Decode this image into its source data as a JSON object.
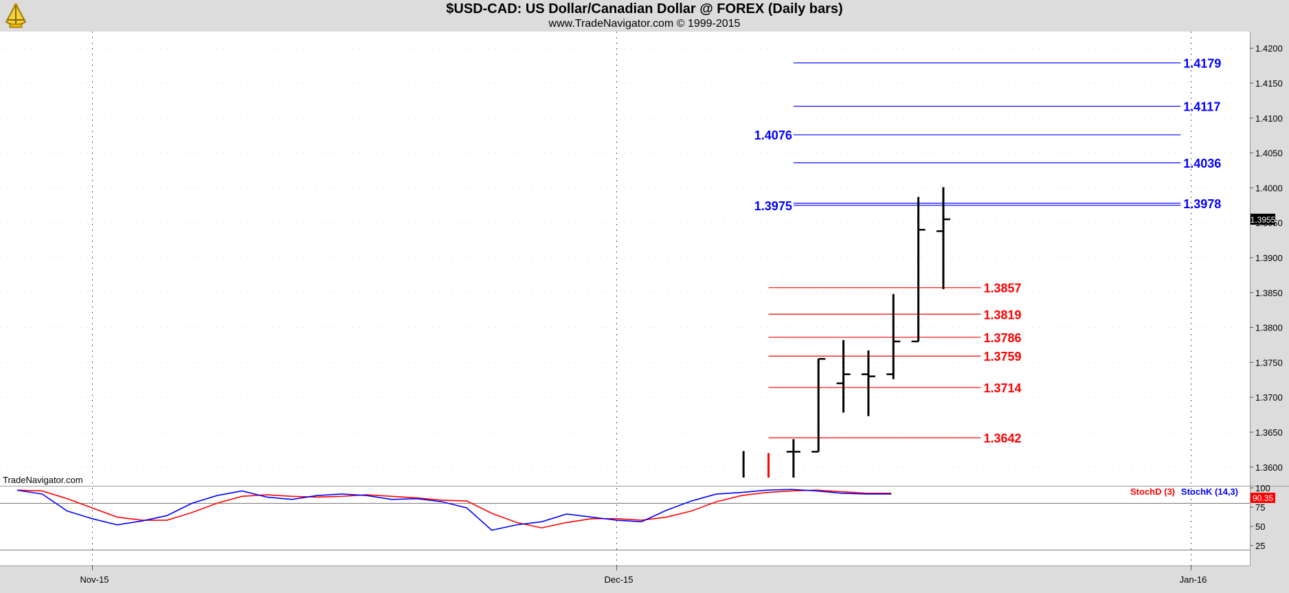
{
  "header": {
    "title": "$USD-CAD:  US Dollar/Canadian Dollar @ FOREX  (Daily bars)",
    "subtitle": "www.TradeNavigator.com © 1999-2015",
    "watermark": "TradeNavigator.com"
  },
  "colors": {
    "background": "#ffffff",
    "chrome": "#dcdcdc",
    "bar": "#000000",
    "blue_level": "#0000ff",
    "red_level": "#ff0000",
    "stoch_k": "#0000ff",
    "stoch_d": "#ff0000",
    "price_badge": "#000000",
    "stoch_badge": "#ff0000"
  },
  "chart_data": [
    {
      "type": "ohlc",
      "x_tick_labels": [
        {
          "label": "Nov-15",
          "index": 3
        },
        {
          "label": "Dec-15",
          "index": 24
        },
        {
          "label": "Jan-16",
          "index": 47
        }
      ],
      "ylim": [
        1.3585,
        1.4215
      ],
      "y_ticks": [
        "1.3600",
        "1.3650",
        "1.3700",
        "1.3750",
        "1.3800",
        "1.3850",
        "1.3900",
        "1.3950",
        "1.4000",
        "1.4050",
        "1.4100",
        "1.4150",
        "1.4200"
      ],
      "last_price": "1.3955",
      "bars": [
        {
          "index": 29,
          "high": 1.3623,
          "low": 1.3585,
          "color": "#000000"
        },
        {
          "index": 30,
          "high": 1.362,
          "low": 1.3585,
          "color": "#ff0000"
        },
        {
          "index": 31,
          "open": 1.3622,
          "high": 1.364,
          "low": 1.3585,
          "close": 1.3622
        },
        {
          "index": 32,
          "open": 1.3622,
          "high": 1.3755,
          "low": 1.3622,
          "close": 1.3755
        },
        {
          "index": 33,
          "open": 1.372,
          "high": 1.3782,
          "low": 1.3678,
          "close": 1.3733
        },
        {
          "index": 34,
          "open": 1.3733,
          "high": 1.3767,
          "low": 1.3673,
          "close": 1.373
        },
        {
          "index": 35,
          "open": 1.3733,
          "high": 1.3848,
          "low": 1.3726,
          "close": 1.378
        },
        {
          "index": 36,
          "open": 1.378,
          "high": 1.3987,
          "low": 1.378,
          "close": 1.394
        },
        {
          "index": 37,
          "open": 1.3938,
          "high": 1.4001,
          "low": 1.3855,
          "close": 1.3955
        }
      ],
      "levels": [
        {
          "value": 1.4179,
          "label": "1.4179",
          "color": "blue",
          "from_index": 31,
          "to_index": 46.5,
          "label_side": "right"
        },
        {
          "value": 1.4117,
          "label": "1.4117",
          "color": "blue",
          "from_index": 31,
          "to_index": 46.5,
          "label_side": "right"
        },
        {
          "value": 1.4076,
          "label": "1.4076",
          "color": "blue",
          "from_index": 31,
          "to_index": 46.5,
          "label_side": "left"
        },
        {
          "value": 1.4036,
          "label": "1.4036",
          "color": "blue",
          "from_index": 31,
          "to_index": 46.5,
          "label_side": "right"
        },
        {
          "value": 1.3978,
          "label": "1.3978",
          "color": "blue",
          "from_index": 31,
          "to_index": 46.5,
          "label_side": "right"
        },
        {
          "value": 1.3975,
          "label": "1.3975",
          "color": "blue",
          "from_index": 31,
          "to_index": 46.5,
          "label_side": "left"
        },
        {
          "value": 1.3857,
          "label": "1.3857",
          "color": "red",
          "from_index": 30,
          "to_index": 38.5,
          "label_side": "right"
        },
        {
          "value": 1.3819,
          "label": "1.3819",
          "color": "red",
          "from_index": 30,
          "to_index": 38.5,
          "label_side": "right"
        },
        {
          "value": 1.3786,
          "label": "1.3786",
          "color": "red",
          "from_index": 30,
          "to_index": 38.5,
          "label_side": "right"
        },
        {
          "value": 1.3759,
          "label": "1.3759",
          "color": "red",
          "from_index": 30,
          "to_index": 38.5,
          "label_side": "right"
        },
        {
          "value": 1.3714,
          "label": "1.3714",
          "color": "red",
          "from_index": 30,
          "to_index": 38.5,
          "label_side": "right"
        },
        {
          "value": 1.3642,
          "label": "1.3642",
          "color": "red",
          "from_index": 30,
          "to_index": 38.5,
          "label_side": "right"
        }
      ]
    },
    {
      "type": "line",
      "indicator": "stochastic",
      "ylim": [
        0,
        100
      ],
      "y_ticks": [
        25,
        50,
        75,
        100
      ],
      "reference_lines": [
        20,
        80
      ],
      "legend": [
        {
          "name": "StochD (3)",
          "color": "#ff0000"
        },
        {
          "name": "StochK (14,3)",
          "color": "#0000ff"
        }
      ],
      "last_value": "90.35",
      "series": [
        {
          "name": "StochK (14,3)",
          "color": "#0000ff",
          "values": [
            97,
            92,
            70,
            60,
            52,
            57,
            64,
            80,
            90,
            96,
            88,
            85,
            90,
            92,
            90,
            85,
            86,
            82,
            74,
            45,
            52,
            56,
            66,
            62,
            58,
            56,
            71,
            83,
            92,
            94,
            97,
            98,
            96,
            93,
            92,
            92
          ]
        },
        {
          "name": "StochD (3)",
          "color": "#ff0000",
          "values": [
            97,
            96,
            86,
            74,
            62,
            58,
            58,
            68,
            80,
            89,
            91,
            89,
            88,
            89,
            91,
            89,
            87,
            84,
            83,
            67,
            55,
            48,
            55,
            60,
            60,
            58,
            62,
            70,
            82,
            90,
            94,
            96,
            97,
            95,
            93,
            93
          ]
        }
      ]
    }
  ]
}
